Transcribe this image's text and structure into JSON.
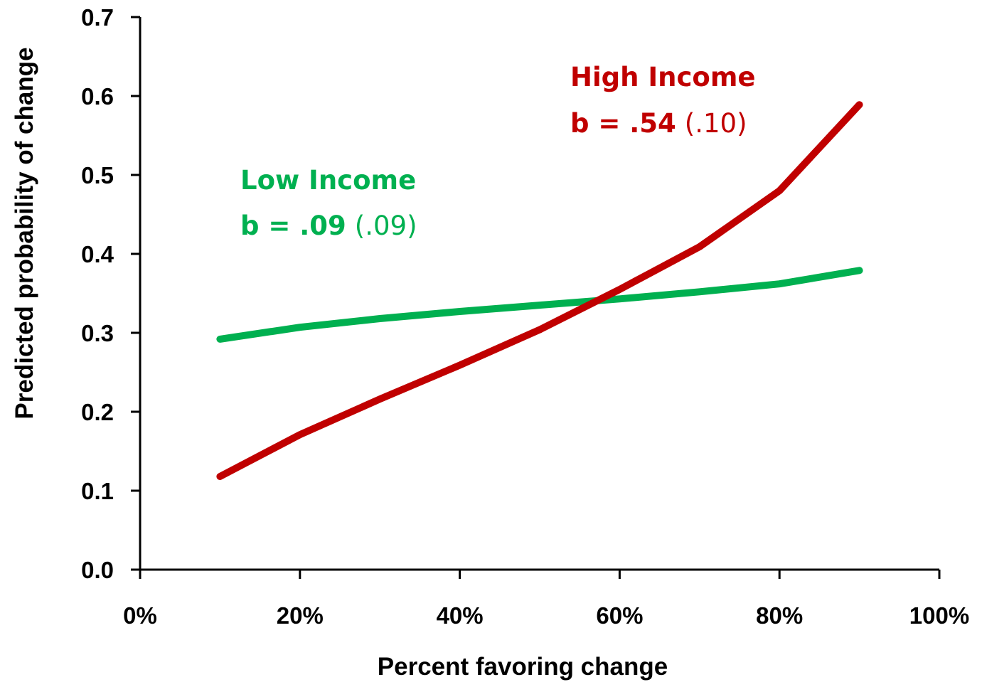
{
  "chart_data": {
    "type": "line",
    "xlabel": "Percent favoring change",
    "ylabel": "Predicted probability of change",
    "x_tick_labels": [
      "0%",
      "20%",
      "40%",
      "60%",
      "80%",
      "100%"
    ],
    "y_tick_labels": [
      "0.0",
      "0.1",
      "0.2",
      "0.3",
      "0.4",
      "0.5",
      "0.6",
      "0.7"
    ],
    "xlim": [
      0,
      1
    ],
    "ylim": [
      0,
      0.7
    ],
    "x_ticks": [
      0,
      0.2,
      0.4,
      0.6,
      0.8,
      1.0
    ],
    "y_ticks": [
      0,
      0.1,
      0.2,
      0.3,
      0.4,
      0.5,
      0.6,
      0.7
    ],
    "grid": false,
    "x": [
      0.1,
      0.2,
      0.3,
      0.4,
      0.5,
      0.6,
      0.7,
      0.8,
      0.9
    ],
    "series": [
      {
        "name": "Low Income",
        "color": "#00b050",
        "values": [
          0.292,
          0.307,
          0.318,
          0.327,
          0.335,
          0.343,
          0.352,
          0.362,
          0.379
        ]
      },
      {
        "name": "High Income",
        "color": "#c00000",
        "values": [
          0.118,
          0.171,
          0.216,
          0.259,
          0.304,
          0.355,
          0.409,
          0.48,
          0.589
        ]
      }
    ],
    "annotations": [
      {
        "id": "low",
        "label": "Low Income",
        "coef_bold": "b = .09",
        "coef_se": "(.09)",
        "color": "#00b050"
      },
      {
        "id": "high",
        "label": "High Income",
        "coef_bold": "b = .54",
        "coef_se": "(.10)",
        "color": "#c00000"
      }
    ]
  }
}
